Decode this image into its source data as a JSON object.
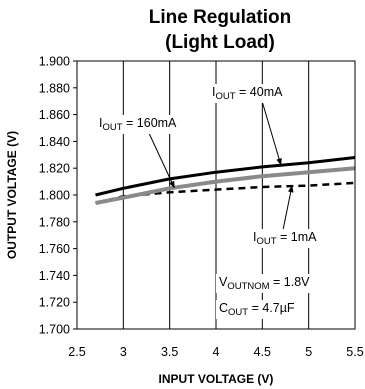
{
  "chart_data": {
    "type": "line",
    "title_line1": "Line Regulation",
    "title_line2": "(Light Load)",
    "xlabel": "INPUT VOLTAGE (V)",
    "ylabel": "OUTPUT VOLTAGE (V)",
    "xlim": [
      2.5,
      5.5
    ],
    "ylim": [
      1.7,
      1.9
    ],
    "xticks": [
      "2.5",
      "3",
      "3.5",
      "4",
      "4.5",
      "5",
      "5.5"
    ],
    "yticks": [
      "1.700",
      "1.720",
      "1.740",
      "1.760",
      "1.780",
      "1.800",
      "1.820",
      "1.840",
      "1.860",
      "1.880",
      "1.900"
    ],
    "grid": "vertical",
    "series": [
      {
        "name": "IOUT = 40mA",
        "style": "solid-thick-black",
        "color": "#000000",
        "x": [
          2.7,
          3.0,
          3.5,
          4.0,
          4.5,
          5.0,
          5.5
        ],
        "y": [
          1.8,
          1.805,
          1.812,
          1.817,
          1.821,
          1.824,
          1.828
        ]
      },
      {
        "name": "IOUT = 160mA",
        "style": "solid-thick-gray",
        "color": "#8a8a8a",
        "x": [
          2.7,
          3.0,
          3.5,
          4.0,
          4.5,
          5.0,
          5.5
        ],
        "y": [
          1.794,
          1.798,
          1.805,
          1.81,
          1.814,
          1.817,
          1.82
        ]
      },
      {
        "name": "IOUT = 1mA",
        "style": "dashed-black",
        "color": "#000000",
        "x": [
          2.7,
          3.0,
          3.5,
          4.0,
          4.5,
          5.0,
          5.5
        ],
        "y": [
          1.794,
          1.799,
          1.802,
          1.804,
          1.806,
          1.807,
          1.809
        ]
      }
    ],
    "annotations": [
      {
        "id": "i40",
        "main": "I",
        "sub": "OUT",
        "rest": " = 40mA"
      },
      {
        "id": "i160",
        "main": "I",
        "sub": "OUT",
        "rest": " = 160mA"
      },
      {
        "id": "i1",
        "main": "I",
        "sub": "OUT",
        "rest": " = 1mA"
      },
      {
        "id": "vnom",
        "main": "V",
        "sub": "OUTNOM",
        "rest": " = 1.8V"
      },
      {
        "id": "cout",
        "main": "C",
        "sub": "OUT",
        "rest": " = 4.7µF"
      }
    ]
  }
}
